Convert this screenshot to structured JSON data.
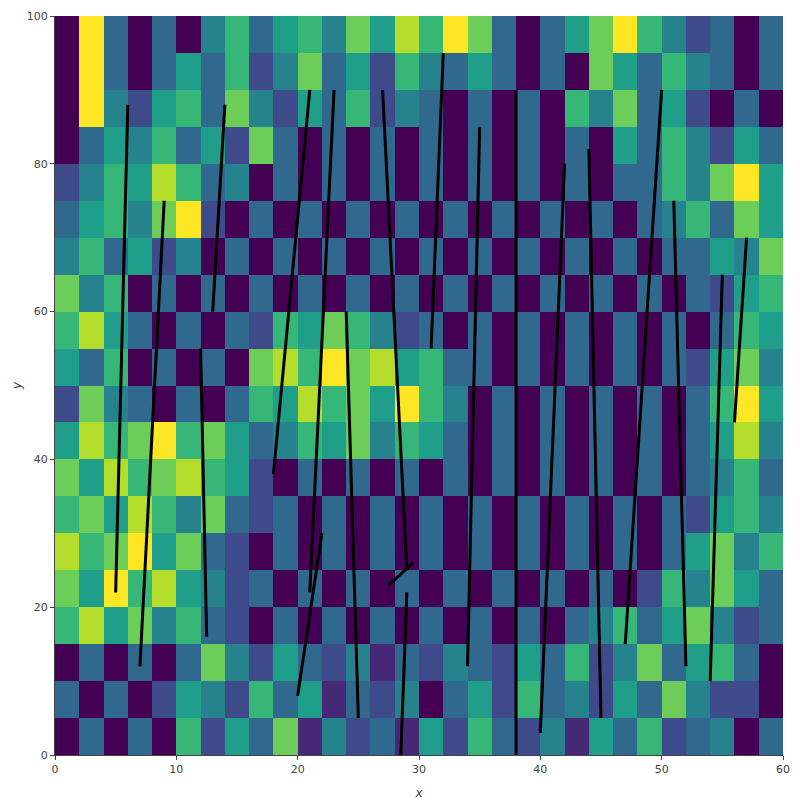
{
  "chart_data": {
    "type": "heatmap",
    "xlabel": "x",
    "ylabel": "y",
    "color": "Viridis",
    "zlim": [
      0,
      9
    ],
    "xlim": [
      0,
      60
    ],
    "ylim": [
      0,
      100
    ],
    "xticks": [
      0,
      10,
      20,
      30,
      40,
      50,
      60
    ],
    "yticks": [
      0,
      20,
      40,
      60,
      80,
      100
    ],
    "grid": false,
    "x": [
      0,
      2,
      4,
      6,
      8,
      10,
      12,
      14,
      16,
      18,
      20,
      22,
      24,
      26,
      28,
      30,
      32,
      34,
      36,
      38,
      40,
      42,
      44,
      46,
      48,
      50,
      52,
      54,
      56,
      58,
      60
    ],
    "y": [
      0,
      5,
      10,
      15,
      20,
      25,
      30,
      35,
      40,
      45,
      50,
      55,
      60,
      65,
      70,
      75,
      80,
      85,
      90,
      95,
      100
    ],
    "cells": [
      [
        0,
        3,
        0,
        3,
        0,
        6,
        2,
        5,
        3,
        7,
        1,
        4,
        2,
        3,
        1,
        5,
        2,
        6,
        3,
        2,
        4,
        1,
        5,
        3,
        6,
        2,
        3,
        4,
        0,
        3
      ],
      [
        3,
        0,
        3,
        0,
        2,
        5,
        4,
        2,
        6,
        3,
        5,
        1,
        3,
        2,
        4,
        0,
        3,
        5,
        2,
        6,
        3,
        4,
        2,
        5,
        3,
        7,
        4,
        2,
        2,
        0
      ],
      [
        0,
        3,
        0,
        3,
        0,
        3,
        7,
        4,
        2,
        5,
        3,
        2,
        4,
        1,
        3,
        2,
        4,
        3,
        2,
        5,
        3,
        6,
        2,
        4,
        7,
        3,
        5,
        6,
        3,
        0
      ],
      [
        6,
        8,
        5,
        7,
        4,
        6,
        3,
        2,
        0,
        3,
        0,
        3,
        0,
        3,
        0,
        3,
        0,
        3,
        0,
        3,
        0,
        3,
        4,
        6,
        3,
        5,
        7,
        4,
        2,
        3
      ],
      [
        7,
        5,
        9,
        6,
        8,
        5,
        4,
        2,
        3,
        0,
        3,
        0,
        3,
        0,
        3,
        0,
        3,
        0,
        3,
        0,
        3,
        0,
        3,
        0,
        2,
        6,
        4,
        7,
        5,
        3
      ],
      [
        8,
        6,
        7,
        9,
        5,
        7,
        3,
        2,
        0,
        3,
        0,
        3,
        0,
        3,
        0,
        3,
        0,
        3,
        0,
        3,
        0,
        3,
        0,
        3,
        0,
        3,
        5,
        7,
        4,
        6
      ],
      [
        6,
        7,
        5,
        8,
        6,
        4,
        7,
        3,
        2,
        3,
        0,
        3,
        0,
        3,
        0,
        3,
        0,
        3,
        0,
        3,
        0,
        3,
        0,
        3,
        0,
        3,
        2,
        5,
        6,
        4
      ],
      [
        7,
        5,
        8,
        6,
        7,
        8,
        6,
        5,
        2,
        0,
        3,
        0,
        3,
        0,
        3,
        0,
        3,
        0,
        3,
        0,
        3,
        0,
        3,
        0,
        3,
        0,
        3,
        4,
        6,
        3
      ],
      [
        5,
        8,
        6,
        7,
        9,
        6,
        7,
        5,
        3,
        4,
        6,
        5,
        7,
        4,
        6,
        5,
        3,
        0,
        3,
        0,
        3,
        0,
        3,
        0,
        3,
        0,
        3,
        5,
        8,
        4
      ],
      [
        2,
        7,
        4,
        3,
        0,
        3,
        0,
        3,
        6,
        5,
        8,
        6,
        7,
        5,
        9,
        6,
        4,
        0,
        3,
        0,
        3,
        0,
        3,
        0,
        3,
        0,
        3,
        6,
        9,
        5
      ],
      [
        5,
        3,
        6,
        0,
        3,
        0,
        3,
        0,
        7,
        8,
        6,
        9,
        7,
        8,
        5,
        6,
        3,
        3,
        0,
        3,
        0,
        3,
        0,
        3,
        0,
        3,
        2,
        5,
        7,
        4
      ],
      [
        6,
        8,
        5,
        3,
        0,
        3,
        0,
        3,
        2,
        6,
        5,
        7,
        6,
        4,
        2,
        3,
        0,
        3,
        0,
        3,
        0,
        3,
        0,
        3,
        0,
        3,
        0,
        3,
        6,
        5
      ],
      [
        7,
        4,
        6,
        0,
        3,
        0,
        3,
        0,
        3,
        0,
        3,
        0,
        3,
        0,
        3,
        0,
        3,
        0,
        3,
        0,
        3,
        0,
        3,
        0,
        3,
        0,
        3,
        2,
        5,
        6
      ],
      [
        4,
        6,
        3,
        5,
        2,
        4,
        0,
        3,
        0,
        3,
        0,
        3,
        0,
        3,
        0,
        3,
        0,
        3,
        0,
        3,
        0,
        3,
        0,
        3,
        0,
        3,
        3,
        5,
        4,
        7
      ],
      [
        3,
        5,
        6,
        4,
        7,
        9,
        2,
        0,
        3,
        0,
        3,
        0,
        3,
        0,
        3,
        0,
        3,
        0,
        3,
        0,
        3,
        0,
        3,
        0,
        3,
        4,
        6,
        3,
        7,
        5
      ],
      [
        2,
        4,
        6,
        5,
        8,
        6,
        3,
        4,
        0,
        3,
        0,
        3,
        0,
        3,
        0,
        3,
        0,
        3,
        0,
        3,
        0,
        3,
        0,
        3,
        3,
        6,
        4,
        7,
        9,
        5
      ],
      [
        0,
        3,
        5,
        4,
        6,
        3,
        5,
        2,
        7,
        3,
        0,
        3,
        0,
        3,
        0,
        3,
        0,
        3,
        0,
        3,
        0,
        3,
        0,
        5,
        3,
        6,
        4,
        2,
        5,
        3
      ],
      [
        0,
        9,
        4,
        2,
        5,
        6,
        3,
        7,
        4,
        2,
        5,
        3,
        6,
        2,
        4,
        3,
        0,
        3,
        0,
        3,
        0,
        6,
        4,
        7,
        3,
        5,
        2,
        0,
        3,
        0
      ],
      [
        0,
        9,
        3,
        0,
        3,
        5,
        3,
        6,
        2,
        4,
        7,
        3,
        5,
        2,
        6,
        4,
        3,
        5,
        3,
        0,
        3,
        0,
        7,
        5,
        3,
        6,
        4,
        3,
        0,
        3
      ],
      [
        0,
        9,
        3,
        0,
        3,
        0,
        4,
        6,
        3,
        5,
        6,
        4,
        7,
        5,
        8,
        6,
        9,
        7,
        3,
        0,
        3,
        5,
        7,
        9,
        6,
        4,
        2,
        3,
        0,
        3
      ]
    ],
    "segments": [
      [
        [
          12.5,
          16
        ],
        [
          12,
          55
        ]
      ],
      [
        [
          18,
          38
        ],
        [
          21,
          90
        ]
      ],
      [
        [
          21,
          22
        ],
        [
          23,
          90
        ]
      ],
      [
        [
          25,
          5
        ],
        [
          24,
          60
        ]
      ],
      [
        [
          29,
          25
        ],
        [
          27,
          90
        ]
      ],
      [
        [
          28.5,
          0
        ],
        [
          29,
          22
        ]
      ],
      [
        [
          27.5,
          23
        ],
        [
          29.5,
          26
        ]
      ],
      [
        [
          34,
          12
        ],
        [
          35,
          85
        ]
      ],
      [
        [
          38,
          0
        ],
        [
          38,
          90
        ]
      ],
      [
        [
          40,
          3
        ],
        [
          42,
          80
        ]
      ],
      [
        [
          45,
          5
        ],
        [
          44,
          82
        ]
      ],
      [
        [
          47,
          15
        ],
        [
          50,
          90
        ]
      ],
      [
        [
          52,
          12
        ],
        [
          51,
          75
        ]
      ],
      [
        [
          54,
          10
        ],
        [
          55,
          65
        ]
      ],
      [
        [
          7,
          12
        ],
        [
          9,
          75
        ]
      ],
      [
        [
          5,
          22
        ],
        [
          6,
          88
        ]
      ],
      [
        [
          13,
          60
        ],
        [
          14,
          88
        ]
      ],
      [
        [
          32,
          95
        ],
        [
          31,
          55
        ]
      ],
      [
        [
          20,
          8
        ],
        [
          22,
          30
        ]
      ],
      [
        [
          56,
          45
        ],
        [
          57,
          70
        ]
      ]
    ]
  }
}
